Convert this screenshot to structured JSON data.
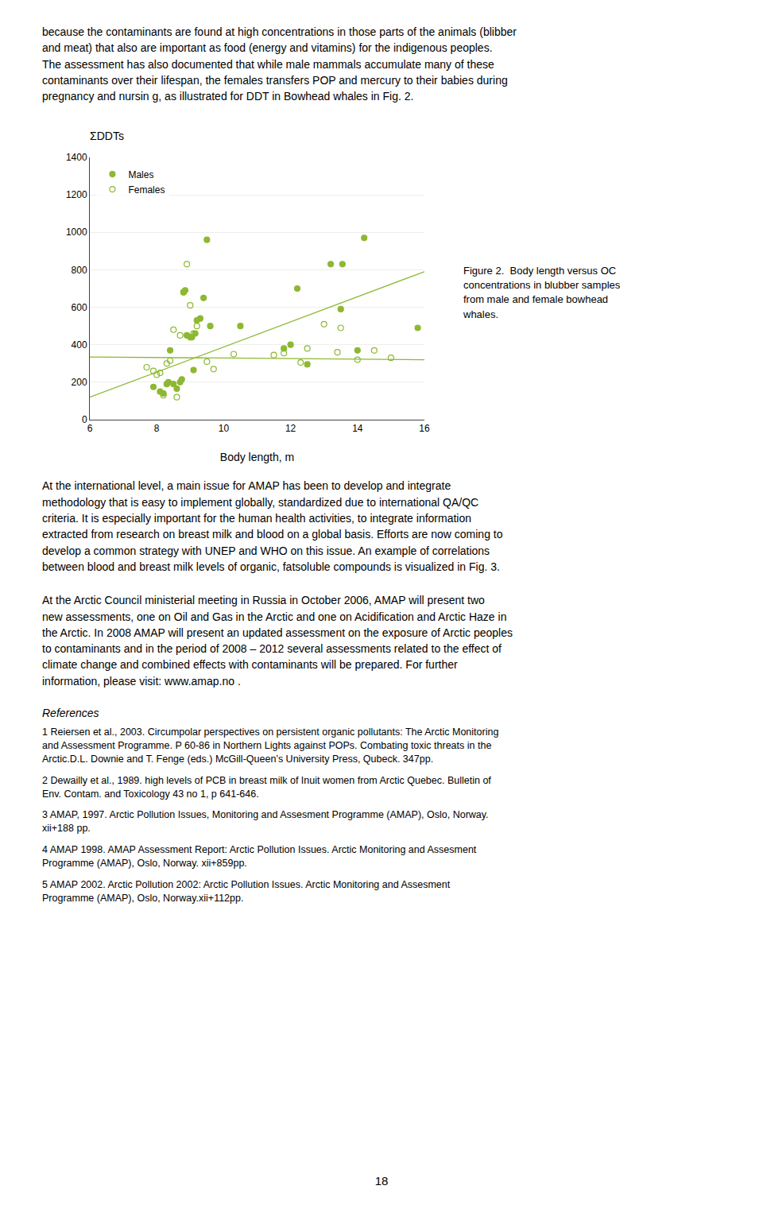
{
  "chart_data": {
    "type": "scatter",
    "title": "ΣDDTs",
    "xlabel": "Body length, m",
    "xlim": [
      6,
      16
    ],
    "ylim": [
      0,
      1400
    ],
    "xticks": [
      6,
      8,
      10,
      12,
      14,
      16
    ],
    "yticks": [
      0,
      200,
      400,
      600,
      800,
      1000,
      1200,
      1400
    ],
    "grid": "y",
    "legend": "upper left",
    "annotations": [
      "Figure 2.  Body length versus OC\nconcentrations in blubber samples\nfrom male and female bowhead\nwhales."
    ],
    "series": [
      {
        "name": "Males",
        "type": "scatter",
        "marker": "circle",
        "color": "#8db832",
        "x": [
          7.9,
          8.1,
          8.2,
          8.3,
          8.35,
          8.4,
          8.5,
          8.6,
          8.7,
          8.75,
          8.8,
          8.85,
          8.9,
          9.0,
          9.05,
          9.1,
          9.15,
          9.2,
          9.3,
          9.4,
          9.5,
          9.6,
          10.5,
          11.8,
          12.0,
          12.2,
          12.5,
          13.2,
          13.5,
          13.55,
          14.0,
          14.2,
          15.8
        ],
        "values": [
          175,
          150,
          140,
          190,
          200,
          370,
          190,
          165,
          200,
          215,
          680,
          690,
          450,
          440,
          440,
          265,
          460,
          530,
          540,
          650,
          960,
          500,
          500,
          380,
          400,
          700,
          295,
          830,
          590,
          830,
          370,
          970,
          490
        ]
      },
      {
        "name": "Females",
        "type": "scatter",
        "marker": "circle-open",
        "color": "#8db832",
        "x": [
          7.7,
          7.9,
          8.0,
          8.1,
          8.2,
          8.3,
          8.4,
          8.5,
          8.6,
          8.7,
          8.8,
          8.9,
          9.0,
          9.1,
          9.2,
          9.5,
          9.7,
          10.3,
          11.5,
          11.8,
          12.3,
          12.5,
          13.0,
          13.4,
          13.5,
          14.0,
          14.5,
          15.0
        ],
        "values": [
          280,
          260,
          240,
          250,
          130,
          300,
          315,
          480,
          120,
          450,
          680,
          830,
          610,
          460,
          500,
          310,
          270,
          350,
          345,
          355,
          305,
          380,
          510,
          360,
          490,
          320,
          370,
          330
        ]
      },
      {
        "type": "line",
        "line_style": "solid",
        "color": "#8db832",
        "x": [
          6,
          16
        ],
        "values": [
          120,
          790
        ]
      },
      {
        "type": "line",
        "line_style": "solid",
        "color": "#8db832",
        "x": [
          6,
          16
        ],
        "values": [
          335,
          320
        ]
      }
    ]
  },
  "text": [
    "because the contaminants are found at high concentrations in those parts of the animals (blibber\nand meat) that also are important as food (energy and vitamins) for the indigenous peoples.\nThe assessment has also documented that while male mammals accumulate many of these\ncontaminants over their lifespan, the females transfers POP and mercury to their babies during\npregnancy and nursin g, as illustrated for DDT in Bowhead whales in Fig. 2.",
    "At the international level, a main issue for AMAP has been to develop and integrate\nmethodology that is easy to implement globally, standardized due to international QA/QC\ncriteria. It is especially important for the human health activities, to integrate information\nextracted from research on breast milk and blood on a global basis. Efforts are now coming to\ndevelop a common strategy with UNEP and WHO on this issue. An example of correlations\nbetween blood and breast milk levels of organic, fatsoluble compounds is visualized in Fig. 3.",
    "At the Arctic Council ministerial meeting in Russia in October 2006, AMAP will present two\nnew assessments, one on Oil and Gas in the Arctic and one on Acidification and Arctic Haze in\nthe Arctic. In 2008 AMAP will present an updated assessment on the exposure of Arctic peoples\nto contaminants and in the period of 2008 – 2012 several assessments related to the effect of\nclimate change and combined effects with contaminants will be prepared. For further\ninformation, please visit: www.amap.no ."
  ],
  "references": {
    "title": "References",
    "items": [
      "1 Reiersen et al., 2003. Circumpolar perspectives on persistent organic pollutants: The Arctic Monitoring\nand Assessment Programme. P 60-86 in Northern Lights against POPs. Combating toxic threats in the\nArctic.D.L. Downie and T. Fenge (eds.) McGill-Queen’s University Press, Qubeck. 347pp.",
      "2 Dewailly et al., 1989. high levels of PCB in breast milk of Inuit women from Arctic Quebec. Bulletin of\nEnv. Contam. and Toxicology 43 no 1, p 641-646.",
      "3 AMAP, 1997. Arctic Pollution Issues, Monitoring and Assesment Programme (AMAP), Oslo, Norway.\nxii+188 pp.",
      "4 AMAP 1998. AMAP Assessment Report: Arctic Pollution Issues. Arctic Monitoring and Assesment\nProgramme (AMAP), Oslo, Norway. xii+859pp.",
      "5 AMAP 2002. Arctic Pollution 2002: Arctic Pollution Issues. Arctic Monitoring and Assesment\nProgramme (AMAP), Oslo, Norway.xii+112pp."
    ]
  },
  "page_number": "18"
}
